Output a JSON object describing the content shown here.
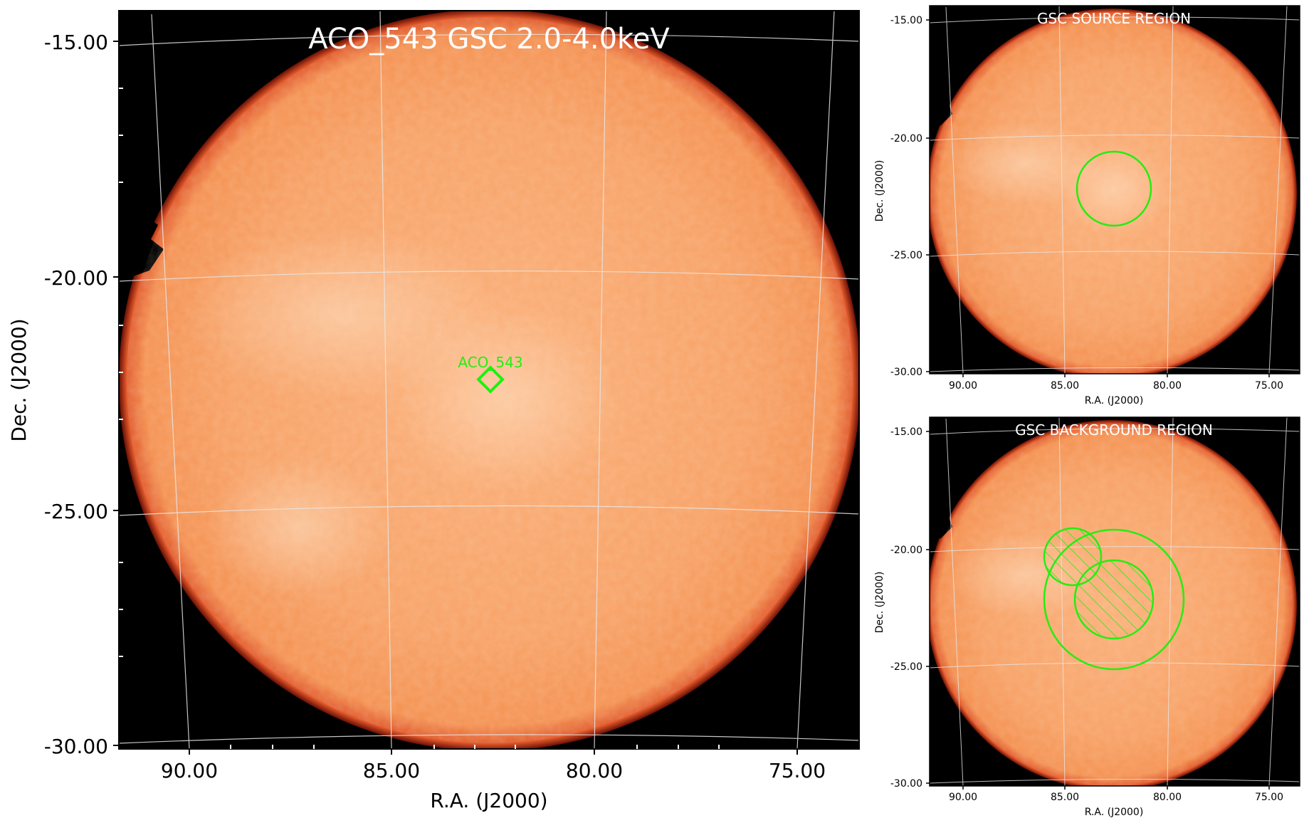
{
  "main": {
    "title": "ACO_543 GSC 2.0-4.0keV",
    "source_label": "ACO_543",
    "xlabel": "R.A. (J2000)",
    "ylabel": "Dec. (J2000)",
    "xticks": [
      "90.00",
      "85.00",
      "80.00",
      "75.00"
    ],
    "yticks": [
      "-15.00",
      "-20.00",
      "-25.00",
      "-30.00"
    ]
  },
  "source_panel": {
    "title": "GSC SOURCE REGION",
    "xlabel": "R.A. (J2000)",
    "ylabel": "Dec. (J2000)",
    "xticks": [
      "90.00",
      "85.00",
      "80.00",
      "75.00"
    ],
    "yticks": [
      "-15.00",
      "-20.00",
      "-25.00",
      "-30.00"
    ]
  },
  "background_panel": {
    "title": "GSC BACKGROUND REGION",
    "xlabel": "R.A. (J2000)",
    "ylabel": "Dec. (J2000)",
    "xticks": [
      "90.00",
      "85.00",
      "80.00",
      "75.00"
    ],
    "yticks": [
      "-15.00",
      "-20.00",
      "-25.00",
      "-30.00"
    ]
  },
  "colors": {
    "disk": "#f59a55",
    "disk_edge": "#d6401a",
    "sky": "#000000",
    "region": "#22ee11",
    "grid": "#e8e8e8"
  }
}
